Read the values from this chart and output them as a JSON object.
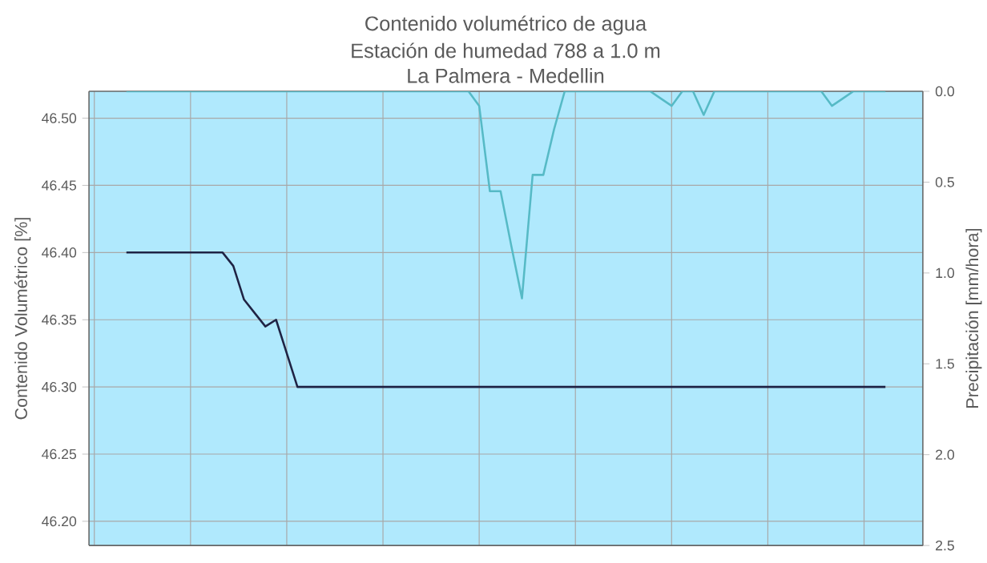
{
  "chart_data": {
    "type": "line",
    "title": "Contenido volumétrico de agua",
    "subtitle": "Estación de humedad 788 a 1.0 m",
    "annotations": [
      "La Palmera - Medellin"
    ],
    "ylabel": "Contenido Volumétrico [%]",
    "y2label": "Precipitación [mm/hora]",
    "categories": [
      null,
      null,
      null,
      null,
      null,
      null,
      null,
      null,
      null,
      null,
      null,
      null,
      null,
      null,
      null,
      null,
      null,
      null,
      null,
      null,
      null,
      null,
      null,
      null,
      null,
      null,
      null,
      null,
      null,
      null,
      null,
      null,
      null,
      null,
      null,
      null,
      null,
      null,
      null,
      null,
      null,
      null,
      null,
      null,
      null,
      null,
      null,
      null,
      null,
      null,
      null,
      null,
      null,
      null,
      null,
      null,
      null,
      null,
      null,
      null,
      null,
      null,
      null,
      null,
      null,
      null,
      null,
      null,
      null,
      null,
      null,
      null,
      null,
      null,
      null,
      null,
      null,
      null
    ],
    "ylim": [
      46.182,
      46.52
    ],
    "yticks": [
      {
        "value": 46.2,
        "label": "46.20"
      },
      {
        "value": 46.25,
        "label": "46.25"
      },
      {
        "value": 46.3,
        "label": "46.30"
      },
      {
        "value": 46.35,
        "label": "46.35"
      },
      {
        "value": 46.4,
        "label": "46.40"
      },
      {
        "value": 46.45,
        "label": "46.45"
      },
      {
        "value": 46.5,
        "label": "46.50"
      }
    ],
    "y2lim": [
      2.5,
      0
    ],
    "y2ticks": [
      {
        "value": 0,
        "label": "0.0"
      },
      {
        "value": 0.5,
        "label": "0.5"
      },
      {
        "value": 1,
        "label": "1.0"
      },
      {
        "value": 1.5,
        "label": "1.5"
      },
      {
        "value": 2,
        "label": "2.0"
      },
      {
        "value": 2.5,
        "label": "2.5"
      }
    ],
    "tick_labels": "y",
    "grid": true,
    "series": [
      {
        "color": "#1f2344",
        "values": [
          null,
          null,
          null,
          46.4,
          46.4,
          46.4,
          46.4,
          46.4,
          46.4,
          46.4,
          46.4,
          46.4,
          46.4,
          46.39,
          46.365,
          46.355,
          46.345,
          46.35,
          46.325,
          46.3,
          46.3,
          46.3,
          46.3,
          46.3,
          46.3,
          46.3,
          46.3,
          46.3,
          46.3,
          46.3,
          46.3,
          46.3,
          46.3,
          46.3,
          46.3,
          46.3,
          46.3,
          46.3,
          46.3,
          46.3,
          46.3,
          46.3,
          46.3,
          46.3,
          46.3,
          46.3,
          46.3,
          46.3,
          46.3,
          46.3,
          46.3,
          46.3,
          46.3,
          46.3,
          46.3,
          46.3,
          46.3,
          46.3,
          46.3,
          46.3,
          46.3,
          46.3,
          46.3,
          46.3,
          46.3,
          46.3,
          46.3,
          46.3,
          46.3,
          46.3,
          46.3,
          46.3,
          46.3,
          46.3,
          46.3,
          null,
          null,
          null
        ]
      },
      {
        "color": "#56bac6",
        "axis": "y2",
        "values": [
          null,
          null,
          null,
          0,
          0,
          0,
          0,
          0,
          0,
          0,
          0,
          0,
          0,
          0,
          0,
          0,
          0,
          0,
          0,
          0,
          0,
          0,
          0,
          0,
          0,
          0,
          0,
          0,
          0,
          0,
          0,
          0,
          0,
          0,
          0,
          0,
          0.08,
          0.55,
          0.55,
          0.85,
          1.14,
          0.46,
          0.46,
          0.21,
          0,
          0,
          0,
          0,
          0,
          0,
          0,
          0,
          0,
          0.04,
          0.08,
          0,
          0,
          0.13,
          0,
          0,
          0,
          0,
          0,
          0,
          0,
          0,
          0,
          0,
          0,
          0.08,
          0.04,
          0,
          0,
          0,
          0,
          null,
          null,
          null
        ]
      }
    ]
  }
}
